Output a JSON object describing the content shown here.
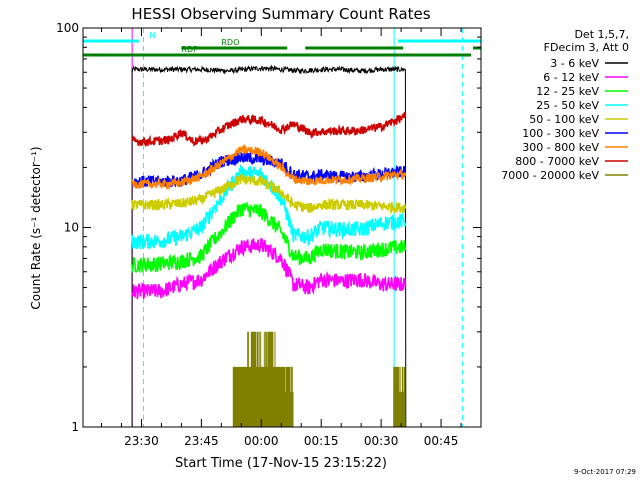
{
  "chart_data": {
    "type": "line",
    "title": "HESSI Observing Summary Count Rates",
    "xlabel": "Start Time (17-Nov-15 23:15:22)",
    "ylabel": "Count Rate (s⁻¹ detector⁻¹)",
    "y_scale": "log",
    "ylim": [
      1,
      100
    ],
    "y_ticks": [
      {
        "value": 1,
        "label": "1"
      },
      {
        "value": 10,
        "label": "10"
      },
      {
        "value": 100,
        "label": "100"
      }
    ],
    "xlim": [
      "23:15:22",
      "00:55:00"
    ],
    "x_ticks": [
      "23:30",
      "23:45",
      "00:00",
      "00:15",
      "00:30",
      "00:45"
    ],
    "legend_header": [
      "Det 1,5,7,",
      "FDecim 3, Att 0"
    ],
    "legend_placement": "right, outside plot",
    "data_window": [
      "23:27:40",
      "00:36:10"
    ],
    "series": [
      {
        "name": "3 - 6 keV",
        "color": "#000000",
        "x": [
          "23:27:40",
          "23:35",
          "23:45",
          "23:52",
          "00:00",
          "00:05",
          "00:10",
          "00:15",
          "00:20",
          "00:25",
          "00:30",
          "00:36"
        ],
        "values": [
          62,
          62,
          62,
          61,
          63,
          62,
          61,
          62,
          62,
          61,
          62,
          62
        ]
      },
      {
        "name": "6 - 12 keV",
        "color": "#ff00ff",
        "x": [
          "23:27:40",
          "23:35",
          "23:40",
          "23:45",
          "23:50",
          "23:55",
          "00:00",
          "00:05",
          "00:08",
          "00:12",
          "00:15",
          "00:20",
          "00:25",
          "00:30",
          "00:35"
        ],
        "values": [
          4.8,
          4.8,
          5.2,
          5.5,
          6.8,
          8.0,
          8.2,
          7.0,
          5.2,
          5.0,
          5.5,
          5.4,
          5.5,
          5.2,
          5.2
        ]
      },
      {
        "name": "12 - 25 keV",
        "color": "#00ff00",
        "x": [
          "23:27:40",
          "23:35",
          "23:40",
          "23:45",
          "23:50",
          "23:55",
          "00:00",
          "00:05",
          "00:08",
          "00:12",
          "00:15",
          "00:20",
          "00:25",
          "00:30",
          "00:35"
        ],
        "values": [
          6.5,
          6.6,
          6.8,
          7.2,
          9.5,
          12.5,
          12.0,
          9.5,
          7.2,
          7.0,
          7.8,
          7.6,
          7.5,
          7.8,
          8.0
        ]
      },
      {
        "name": "25 - 50 keV",
        "color": "#00ffff",
        "x": [
          "23:27:40",
          "23:35",
          "23:40",
          "23:45",
          "23:50",
          "23:55",
          "00:00",
          "00:05",
          "00:08",
          "00:12",
          "00:15",
          "00:20",
          "00:25",
          "00:30",
          "00:35"
        ],
        "values": [
          8.5,
          8.6,
          9.0,
          10.0,
          14.0,
          19.0,
          18.5,
          14.0,
          9.2,
          9.0,
          10.0,
          9.8,
          9.8,
          10.5,
          10.8
        ]
      },
      {
        "name": "50 - 100 keV",
        "color": "#cccc00",
        "x": [
          "23:27:40",
          "23:35",
          "23:40",
          "23:45",
          "23:50",
          "23:55",
          "00:00",
          "00:05",
          "00:08",
          "00:12",
          "00:15",
          "00:20",
          "00:25",
          "00:30",
          "00:35"
        ],
        "values": [
          13.0,
          13.0,
          13.2,
          13.8,
          15.5,
          17.5,
          17.0,
          15.0,
          13.0,
          12.5,
          13.0,
          13.0,
          13.0,
          12.8,
          12.6
        ]
      },
      {
        "name": "100 - 300 keV",
        "color": "#0000ff",
        "x": [
          "23:27:40",
          "23:35",
          "23:40",
          "23:45",
          "23:50",
          "23:55",
          "00:00",
          "00:05",
          "00:08",
          "00:12",
          "00:15",
          "00:20",
          "00:25",
          "00:30",
          "00:35"
        ],
        "values": [
          17.0,
          17.0,
          17.2,
          18.5,
          21.5,
          22.5,
          22.0,
          21.0,
          18.5,
          18.0,
          18.3,
          18.0,
          18.0,
          18.5,
          19.0
        ]
      },
      {
        "name": "300 - 800 keV",
        "color": "#ff8000",
        "x": [
          "23:27:40",
          "23:35",
          "23:40",
          "23:45",
          "23:50",
          "23:55",
          "00:00",
          "00:05",
          "00:08",
          "00:12",
          "00:15",
          "00:20",
          "00:25",
          "00:30",
          "00:35"
        ],
        "values": [
          16.5,
          16.5,
          16.8,
          18.0,
          21.0,
          24.5,
          24.0,
          20.0,
          17.5,
          17.0,
          17.3,
          17.4,
          17.6,
          18.0,
          18.5
        ]
      },
      {
        "name": "800 - 7000 keV",
        "color": "#cc0000",
        "x": [
          "23:27:40",
          "23:33",
          "23:37",
          "23:40",
          "23:43",
          "23:46",
          "23:50",
          "23:55",
          "00:00",
          "00:05",
          "00:08",
          "00:12",
          "00:18",
          "00:24",
          "00:30",
          "00:33",
          "00:36"
        ],
        "values": [
          27.0,
          27.0,
          27.5,
          30.0,
          27.0,
          27.5,
          31.0,
          35.0,
          34.5,
          31.0,
          33.0,
          30.0,
          30.5,
          30.5,
          32.0,
          34.0,
          36.0
        ]
      },
      {
        "name": "7000 - 20000 keV",
        "color": "#808000",
        "x": [
          "23:53",
          "23:56",
          "23:58",
          "00:00",
          "00:02",
          "00:04",
          "00:06",
          "00:08",
          "00:33",
          "00:34",
          "00:35",
          "00:36"
        ],
        "values": [
          2.0,
          2.0,
          3.0,
          2.0,
          3.0,
          2.0,
          2.0,
          1.5,
          2.0,
          2.0,
          1.5,
          2.0
        ]
      }
    ],
    "flag_bars": [
      {
        "label": "N",
        "color": "#00ffff",
        "segments": [
          [
            "23:15:22",
            "23:29:20"
          ],
          [
            "00:34:10",
            "00:55:00"
          ]
        ]
      },
      {
        "label": "RDO",
        "color": "#008000",
        "segments": [
          [
            "23:40:00",
            "00:06:30"
          ],
          [
            "00:11:00",
            "00:35:30"
          ],
          [
            "00:53:00",
            "00:55:00"
          ]
        ]
      },
      {
        "label": "RDP",
        "color": "#008000",
        "segments": [
          [
            "23:15:22",
            "00:52:30"
          ]
        ]
      }
    ],
    "vertical_markers": [
      {
        "time": "23:27:40",
        "color": "#ff00ff",
        "style": "solid"
      },
      {
        "time": "23:30:30",
        "color": "#00ffff",
        "style": "dashed"
      },
      {
        "time": "00:33:15",
        "color": "#00ffff",
        "style": "solid"
      },
      {
        "time": "00:50:20",
        "color": "#00ffff",
        "style": "dashed"
      }
    ],
    "grid": false,
    "footer_timestamp": "9-Oct-2017 07:29"
  }
}
